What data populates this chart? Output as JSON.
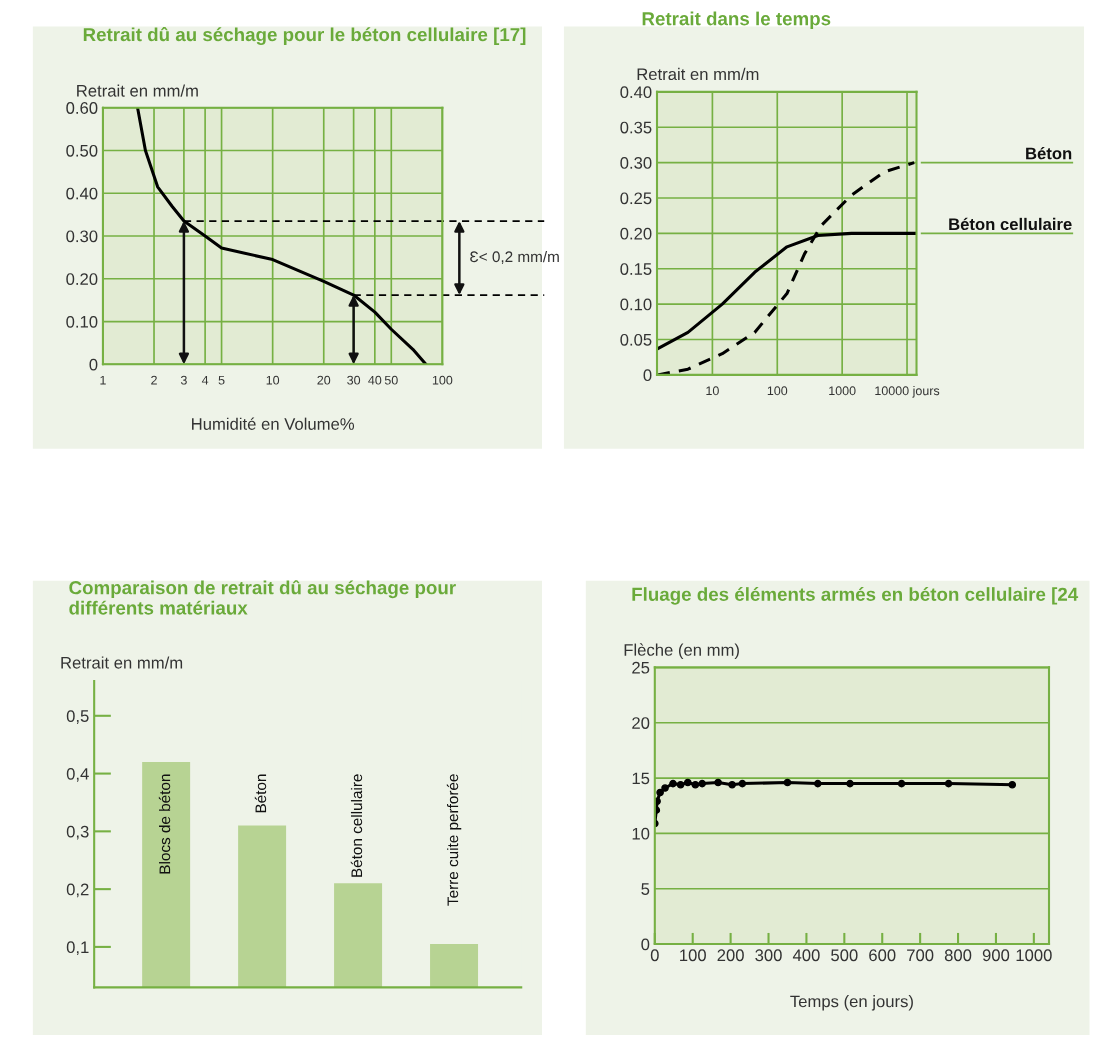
{
  "chart_data": [
    {
      "type": "line",
      "title": "Retrait dû au séchage pour le béton cellulaire [17]",
      "ylabel": "Retrait en mm/m",
      "xlabel": "Humidité en Volume%",
      "log": "x",
      "xlim": [
        1,
        100
      ],
      "xticks": [
        1,
        2,
        3,
        4,
        5,
        10,
        20,
        30,
        40,
        50,
        100
      ],
      "ylim": [
        0,
        0.6
      ],
      "yticks": [
        0,
        {
          "value": 0.1,
          "label": "0.10"
        },
        {
          "value": 0.2,
          "label": "0.20"
        },
        {
          "value": 0.3,
          "label": "0.30"
        },
        {
          "value": 0.4,
          "label": "0.40"
        },
        {
          "value": 0.5,
          "label": "0.50"
        },
        {
          "value": 0.6,
          "label": "0.60"
        }
      ],
      "grid": true,
      "series": [
        {
          "color": "#000000",
          "line_style": "solid",
          "x": [
            1.6,
            1.78,
            2.1,
            2.56,
            3,
            4,
            5,
            10,
            20,
            30,
            40,
            50,
            67,
            80
          ],
          "values": [
            0.6,
            0.5,
            0.415,
            0.369,
            0.335,
            0.3,
            0.272,
            0.245,
            0.194,
            0.162,
            0.122,
            0.082,
            0.035,
            0
          ]
        }
      ],
      "ref_lines": [
        {
          "axis": "y",
          "value": 0.335,
          "line_style": "dashed",
          "color": "#000000"
        },
        {
          "axis": "y",
          "value": 0.162,
          "line_style": "dashed",
          "color": "#000000"
        }
      ],
      "annotations": [
        "Ɛ< 0,2 mm/m"
      ]
    },
    {
      "type": "line",
      "title": "Retrait dans le temps",
      "ylabel": "Retrait en mm/m",
      "log": "x",
      "xlim": [
        1.4,
        14000
      ],
      "xticks": [
        10,
        100,
        1000,
        {
          "value": 10000,
          "label": "10000 jours"
        }
      ],
      "ylim": [
        0,
        0.4
      ],
      "yticks": [
        0,
        0.05,
        {
          "value": 0.1,
          "label": "0.10"
        },
        0.15,
        {
          "value": 0.2,
          "label": "0.20"
        },
        0.25,
        {
          "value": 0.3,
          "label": "0.30"
        },
        0.35,
        {
          "value": 0.4,
          "label": "0.40"
        }
      ],
      "grid": true,
      "legend": false,
      "series": [
        {
          "name": "Béton",
          "color": "#000000",
          "line_style": "dashed",
          "x": [
            1.44,
            4.2,
            14.2,
            44.8,
            141,
            263,
            475,
            1390,
            4480,
            12900
          ],
          "values": [
            0,
            0.008,
            0.03,
            0.06,
            0.115,
            0.171,
            0.211,
            0.254,
            0.287,
            0.3
          ]
        },
        {
          "name": "Béton cellulaire",
          "color": "#000000",
          "line_style": "solid",
          "x": [
            1.44,
            4.2,
            14.2,
            44.8,
            141,
            423,
            1390,
            13700
          ],
          "values": [
            0.037,
            0.06,
            0.1,
            0.145,
            0.181,
            0.197,
            0.2,
            0.2
          ]
        }
      ]
    },
    {
      "type": "bar",
      "title": "Comparaison de retrait dû au séchage pour\ndifférents matériaux",
      "ylabel": "Retrait en mm/m",
      "categories": [
        "Blocs de béton",
        "Béton",
        "Béton cellulaire",
        "Terre cuite perforée"
      ],
      "values": [
        0.42,
        0.31,
        0.21,
        0.105
      ],
      "color": "#b7d393",
      "ylim": [
        0.03,
        0.56
      ],
      "yticks": [
        {
          "value": 0.1,
          "label": "0,1"
        },
        {
          "value": 0.2,
          "label": "0,2"
        },
        {
          "value": 0.3,
          "label": "0,3"
        },
        {
          "value": 0.4,
          "label": "0,4"
        },
        {
          "value": 0.5,
          "label": "0,5"
        }
      ],
      "grid": false,
      "tick_labels": "y"
    },
    {
      "type": "line",
      "title": "Fluage des éléments armés en béton cellulaire [24",
      "ylabel": "Flèche (en mm)",
      "xlabel": "Temps (en jours)",
      "xlim": [
        0,
        1040
      ],
      "xticks": [
        0,
        100,
        200,
        300,
        400,
        500,
        600,
        700,
        800,
        900,
        1000
      ],
      "ylim": [
        0,
        25
      ],
      "yticks": [
        0,
        5,
        10,
        15,
        20,
        25
      ],
      "grid": "y",
      "marker": "circle",
      "series": [
        {
          "color": "#000000",
          "line_style": "solid",
          "x": [
            0,
            4,
            6,
            14,
            27,
            48,
            68,
            87,
            107,
            125,
            167,
            204,
            231,
            350,
            430,
            515,
            651,
            775,
            943
          ],
          "values": [
            10.9,
            12.1,
            12.9,
            13.7,
            14.1,
            14.5,
            14.4,
            14.6,
            14.4,
            14.5,
            14.6,
            14.4,
            14.5,
            14.6,
            14.5,
            14.5,
            14.5,
            14.5,
            14.4
          ]
        }
      ]
    }
  ]
}
